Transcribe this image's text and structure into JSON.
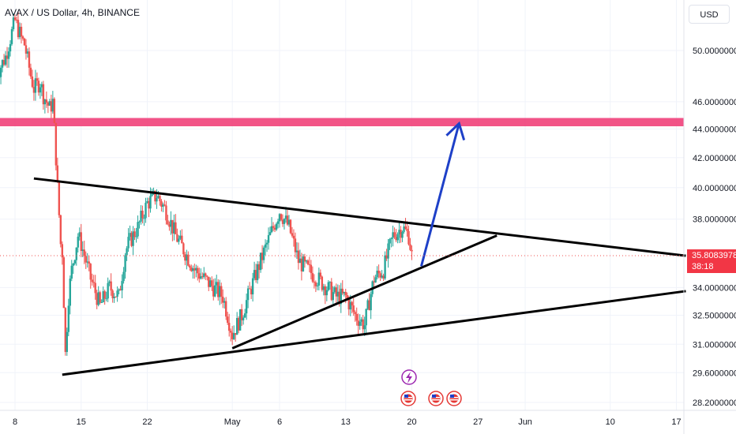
{
  "header": {
    "symbol": "AVAX / US Dollar, 4h, BINANCE"
  },
  "axis": {
    "currency": "USD"
  },
  "price_tag": {
    "price": "35.8083978",
    "countdown": "38:18"
  },
  "colors": {
    "up": "#26a69a",
    "down": "#ef5350",
    "zone": "#f0407a",
    "arrow": "#1e40c8",
    "line": "#000000"
  },
  "chart_data": {
    "type": "candlestick",
    "title": "AVAX / US Dollar, 4h, BINANCE",
    "y_scale": "log",
    "ylim": [
      27.8,
      55.0
    ],
    "xlim": [
      "2024-04-06",
      "2024-06-18"
    ],
    "x_tick_labels": [
      "8",
      "15",
      "22",
      "May",
      "6",
      "13",
      "20",
      "27",
      "Jun",
      "10",
      "17"
    ],
    "x_ticks": [
      "2024-04-08",
      "2024-04-15",
      "2024-04-22",
      "2024-05-01",
      "2024-05-06",
      "2024-05-13",
      "2024-05-20",
      "2024-05-27",
      "2024-06-01",
      "2024-06-10",
      "2024-06-17"
    ],
    "y_tick_labels": [
      "50.0000000",
      "46.0000000",
      "44.0000000",
      "42.0000000",
      "40.0000000",
      "38.0000000",
      "34.0000000",
      "32.5000000",
      "31.0000000",
      "29.6000000",
      "28.2000000"
    ],
    "y_ticks": [
      50,
      46,
      44,
      42,
      40,
      38,
      34,
      32.5,
      31,
      29.6,
      28.2
    ],
    "last_price": 35.8083978,
    "close_path": [
      [
        "2024-04-06",
        48.0
      ],
      [
        "2024-04-07",
        49.5
      ],
      [
        "2024-04-08",
        52.5
      ],
      [
        "2024-04-08T16",
        51.0
      ],
      [
        "2024-04-09",
        50.5
      ],
      [
        "2024-04-09T16",
        48.0
      ],
      [
        "2024-04-10",
        47.0
      ],
      [
        "2024-04-10T16",
        47.5
      ],
      [
        "2024-04-11",
        46.5
      ],
      [
        "2024-04-11T16",
        45.5
      ],
      [
        "2024-04-12",
        46.0
      ],
      [
        "2024-04-12T12",
        40.0
      ],
      [
        "2024-04-12T20",
        36.5
      ],
      [
        "2024-04-13",
        36.0
      ],
      [
        "2024-04-13T08",
        30.5
      ],
      [
        "2024-04-13T16",
        33.5
      ],
      [
        "2024-04-14",
        35.0
      ],
      [
        "2024-04-14T16",
        37.0
      ],
      [
        "2024-04-15",
        36.5
      ],
      [
        "2024-04-16",
        34.5
      ],
      [
        "2024-04-17",
        33.0
      ],
      [
        "2024-04-18",
        34.0
      ],
      [
        "2024-04-19",
        33.5
      ],
      [
        "2024-04-19T16",
        36.0
      ],
      [
        "2024-04-20",
        36.5
      ],
      [
        "2024-04-21",
        37.5
      ],
      [
        "2024-04-22",
        39.0
      ],
      [
        "2024-04-23",
        39.5
      ],
      [
        "2024-04-24",
        38.5
      ],
      [
        "2024-04-25",
        37.0
      ],
      [
        "2024-04-26",
        36.0
      ],
      [
        "2024-04-27",
        35.0
      ],
      [
        "2024-04-28",
        34.5
      ],
      [
        "2024-04-29",
        34.0
      ],
      [
        "2024-04-30",
        33.5
      ],
      [
        "2024-05-01",
        31.5
      ],
      [
        "2024-05-02",
        32.5
      ],
      [
        "2024-05-03",
        34.0
      ],
      [
        "2024-05-04",
        35.5
      ],
      [
        "2024-05-05",
        37.0
      ],
      [
        "2024-05-06",
        38.5
      ],
      [
        "2024-05-07",
        37.5
      ],
      [
        "2024-05-08",
        35.5
      ],
      [
        "2024-05-09",
        35.0
      ],
      [
        "2024-05-10",
        34.5
      ],
      [
        "2024-05-11",
        34.0
      ],
      [
        "2024-05-12",
        33.5
      ],
      [
        "2024-05-13",
        33.5
      ],
      [
        "2024-05-14",
        32.5
      ],
      [
        "2024-05-15",
        32.0
      ],
      [
        "2024-05-16",
        34.5
      ],
      [
        "2024-05-17",
        35.0
      ],
      [
        "2024-05-18",
        37.0
      ],
      [
        "2024-05-19",
        37.5
      ],
      [
        "2024-05-19T16",
        37.0
      ],
      [
        "2024-05-20",
        35.81
      ]
    ],
    "drawings": {
      "resistance_zone": [
        44.2,
        44.8
      ],
      "descending_trendline": [
        [
          "2024-04-10",
          40.6
        ],
        [
          "2024-06-18",
          35.8
        ]
      ],
      "lower_support_line": [
        [
          "2024-04-13",
          29.5
        ],
        [
          "2024-06-18",
          33.8
        ]
      ],
      "rising_trendline": [
        [
          "2024-05-01",
          30.8
        ],
        [
          "2024-05-29",
          37.0
        ]
      ],
      "arrow_from": [
        "2024-05-21",
        35.2
      ],
      "arrow_to": [
        "2024-05-25",
        44.4
      ]
    }
  }
}
